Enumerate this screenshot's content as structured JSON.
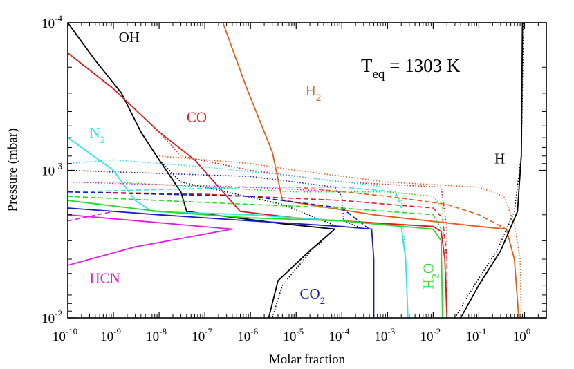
{
  "chart_data": {
    "type": "line",
    "xlabel": "Molar fraction",
    "ylabel": "Pressure (mbar)",
    "x_scale": "log",
    "y_scale": "log",
    "y_inverted": true,
    "xlim": [
      1e-10,
      3
    ],
    "ylim": [
      0.01,
      0.0001
    ],
    "grid": false,
    "annotation": {
      "base": "T",
      "sub": "eq",
      "rest": " = 1303 K"
    },
    "x_ticks": [
      {
        "base": "10",
        "exp": "-10",
        "value": 1e-10
      },
      {
        "base": "10",
        "exp": "-9",
        "value": 1e-09
      },
      {
        "base": "10",
        "exp": "-8",
        "value": 1e-08
      },
      {
        "base": "10",
        "exp": "-7",
        "value": 1e-07
      },
      {
        "base": "10",
        "exp": "-6",
        "value": 1e-06
      },
      {
        "base": "10",
        "exp": "-5",
        "value": 1e-05
      },
      {
        "base": "10",
        "exp": "-4",
        "value": 0.0001
      },
      {
        "base": "10",
        "exp": "-3",
        "value": 0.001
      },
      {
        "base": "10",
        "exp": "-2",
        "value": 0.01
      },
      {
        "base": "10",
        "exp": "-1",
        "value": 0.1
      },
      {
        "base": "10",
        "exp": "0",
        "value": 1
      }
    ],
    "y_ticks": [
      {
        "base": "10",
        "exp": "-4",
        "value": 0.0001
      },
      {
        "base": "10",
        "exp": "-3",
        "value": 0.001
      },
      {
        "base": "10",
        "exp": "-2",
        "value": 0.01
      }
    ],
    "series": [
      {
        "name": "OH",
        "label": {
          "base": "OH",
          "sub": ""
        },
        "color": "#000000",
        "label_at": [
          1.3e-09,
          0.000135
        ],
        "lines": [
          {
            "style": "solid",
            "points": [
              [
                1e-10,
                0.0001
              ],
              [
                4e-10,
                0.00018
              ],
              [
                1.5e-09,
                0.0003
              ],
              [
                4e-09,
                0.00055
              ],
              [
                1e-08,
                0.00085
              ],
              [
                3e-08,
                0.0014
              ],
              [
                4e-08,
                0.0019
              ],
              [
                5e-06,
                0.0023
              ],
              [
                7e-05,
                0.0025
              ],
              [
                2e-05,
                0.0035
              ],
              [
                4e-06,
                0.0056
              ],
              [
                2.5e-06,
                0.01
              ]
            ]
          },
          {
            "style": "dotted",
            "points": [
              [
                1e-10,
                0.0001
              ],
              [
                4e-10,
                0.00018
              ],
              [
                1.5e-09,
                0.0003
              ],
              [
                4e-09,
                0.00055
              ],
              [
                1e-08,
                0.00085
              ],
              [
                3e-08,
                0.0012
              ],
              [
                3e-07,
                0.0014
              ],
              [
                5e-06,
                0.0017
              ],
              [
                8e-05,
                0.0024
              ],
              [
                2e-05,
                0.0036
              ],
              [
                5e-06,
                0.006
              ],
              [
                3e-06,
                0.01
              ]
            ]
          }
        ]
      },
      {
        "name": "CO",
        "label": {
          "base": "CO",
          "sub": ""
        },
        "color": "#e41a1c",
        "label_at": [
          4e-08,
          0.00047
        ],
        "lines": [
          {
            "style": "solid",
            "points": [
              [
                1e-10,
                0.00016
              ],
              [
                1e-09,
                0.00028
              ],
              [
                1e-08,
                0.00055
              ],
              [
                6e-08,
                0.00085
              ],
              [
                6e-07,
                0.0019
              ],
              [
                1e-05,
                0.0021
              ],
              [
                0.001,
                0.0023
              ],
              [
                0.01,
                0.0024
              ],
              [
                0.015,
                0.0026
              ],
              [
                0.018,
                0.004
              ],
              [
                0.02,
                0.01
              ]
            ]
          },
          {
            "style": "dotted",
            "points": [
              [
                1e-10,
                0.00016
              ],
              [
                1e-09,
                0.00028
              ],
              [
                1e-08,
                0.00055
              ],
              [
                3e-08,
                0.0008
              ],
              [
                1e-06,
                0.001
              ],
              [
                0.0001,
                0.0012
              ],
              [
                0.015,
                0.0013
              ],
              [
                0.02,
                0.0025
              ],
              [
                0.02,
                0.01
              ]
            ]
          },
          {
            "style": "dashed",
            "points": [
              [
                1e-10,
                0.0014
              ],
              [
                1e-07,
                0.00145
              ],
              [
                1e-06,
                0.0015
              ],
              [
                0.0001,
                0.0016
              ],
              [
                0.01,
                0.0018
              ],
              [
                0.016,
                0.0021
              ],
              [
                0.02,
                0.004
              ],
              [
                0.02,
                0.01
              ]
            ]
          }
        ]
      },
      {
        "name": "H2",
        "label": {
          "base": "H",
          "sub": "2"
        },
        "color": "#f05a14",
        "label_at": [
          1.6e-05,
          0.00031
        ],
        "lines": [
          {
            "style": "solid",
            "points": [
              [
                2.5e-07,
                0.0001
              ],
              [
                8e-07,
                0.00027
              ],
              [
                3e-06,
                0.00075
              ],
              [
                5e-06,
                0.0016
              ],
              [
                0.0005,
                0.002
              ],
              [
                0.1,
                0.0024
              ],
              [
                0.4,
                0.0025
              ],
              [
                0.6,
                0.004
              ],
              [
                0.75,
                0.01
              ]
            ]
          },
          {
            "style": "dotted",
            "points": [
              [
                1e-08,
                0.0008
              ],
              [
                1e-06,
                0.0009
              ],
              [
                1e-05,
                0.001
              ],
              [
                0.001,
                0.0012
              ],
              [
                0.1,
                0.0013
              ],
              [
                0.35,
                0.0015
              ],
              [
                0.6,
                0.0023
              ],
              [
                0.8,
                0.004
              ],
              [
                0.85,
                0.01
              ]
            ]
          },
          {
            "style": "dashed",
            "points": [
              [
                1e-05,
                0.0013
              ],
              [
                0.001,
                0.0015
              ],
              [
                0.02,
                0.0017
              ],
              [
                0.1,
                0.002
              ],
              [
                0.4,
                0.0025
              ]
            ]
          }
        ]
      },
      {
        "name": "N2",
        "label": {
          "base": "N",
          "sub": "2"
        },
        "color": "#2ee6e6",
        "label_at": [
          3e-10,
          0.0006
        ],
        "lines": [
          {
            "style": "solid",
            "points": [
              [
                1e-10,
                0.0006
              ],
              [
                1e-09,
                0.001
              ],
              [
                3e-09,
                0.0016
              ],
              [
                7e-09,
                0.0019
              ],
              [
                1e-06,
                0.002
              ],
              [
                0.0001,
                0.0022
              ],
              [
                0.002,
                0.0024
              ],
              [
                0.0025,
                0.004
              ],
              [
                0.0028,
                0.01
              ]
            ]
          },
          {
            "style": "dotted",
            "points": [
              [
                1e-10,
                0.0009
              ],
              [
                1e-09,
                0.00085
              ],
              [
                1e-07,
                0.00095
              ],
              [
                1e-05,
                0.0011
              ],
              [
                0.001,
                0.0013
              ],
              [
                0.002,
                0.0016
              ],
              [
                0.0025,
                0.004
              ]
            ]
          },
          {
            "style": "dashed",
            "points": [
              [
                1e-10,
                0.0014
              ],
              [
                1e-08,
                0.00135
              ],
              [
                1e-06,
                0.0013
              ],
              [
                0.0001,
                0.0013
              ],
              [
                0.0015,
                0.0014
              ],
              [
                0.002,
                0.0018
              ]
            ]
          }
        ]
      },
      {
        "name": "CO2",
        "label": {
          "base": "CO",
          "sub": "2"
        },
        "color": "#1a1acc",
        "label_at": [
          1.2e-05,
          0.0074
        ],
        "lines": [
          {
            "style": "solid",
            "points": [
              [
                1e-10,
                0.0018
              ],
              [
                1e-08,
                0.002
              ],
              [
                1e-06,
                0.0022
              ],
              [
                0.0001,
                0.0024
              ],
              [
                0.00045,
                0.0025
              ],
              [
                0.0005,
                0.004
              ],
              [
                0.0005,
                0.01
              ]
            ]
          },
          {
            "style": "dotted",
            "points": [
              [
                1e-10,
                0.001
              ],
              [
                1e-08,
                0.00105
              ],
              [
                1e-06,
                0.0011
              ],
              [
                7e-05,
                0.0013
              ],
              [
                0.0001,
                0.0015
              ],
              [
                0.00011,
                0.0022
              ],
              [
                0.0003,
                0.0025
              ]
            ]
          },
          {
            "style": "dashed",
            "points": [
              [
                1e-10,
                0.0014
              ],
              [
                1e-08,
                0.00145
              ],
              [
                1e-06,
                0.0015
              ],
              [
                0.0001,
                0.0018
              ],
              [
                0.0004,
                0.0025
              ]
            ]
          }
        ]
      },
      {
        "name": "H2O",
        "label": {
          "base": "H",
          "sub": "2",
          "rest": "O"
        },
        "color": "#22dd22",
        "label_at": [
          0.01,
          0.0064
        ],
        "lines": [
          {
            "style": "solid",
            "points": [
              [
                1e-10,
                0.0016
              ],
              [
                1e-08,
                0.0019
              ],
              [
                1e-06,
                0.0021
              ],
              [
                0.0001,
                0.0022
              ],
              [
                0.01,
                0.0025
              ],
              [
                0.015,
                0.003
              ],
              [
                0.016,
                0.01
              ]
            ]
          },
          {
            "style": "dotted",
            "points": [
              [
                1e-09,
                0.0012
              ],
              [
                1e-07,
                0.0013
              ],
              [
                1e-05,
                0.0014
              ],
              [
                0.001,
                0.0014
              ],
              [
                0.01,
                0.0015
              ],
              [
                0.016,
                0.0018
              ],
              [
                0.017,
                0.003
              ]
            ]
          },
          {
            "style": "dashed",
            "points": [
              [
                1e-10,
                0.0015
              ],
              [
                1e-08,
                0.0016
              ],
              [
                1e-06,
                0.0017
              ],
              [
                0.0001,
                0.0018
              ],
              [
                0.01,
                0.002
              ],
              [
                0.015,
                0.0025
              ]
            ]
          }
        ]
      },
      {
        "name": "HCN",
        "label": {
          "base": "HCN",
          "sub": ""
        },
        "color": "#e61ae6",
        "label_at": [
          3e-10,
          0.0058
        ],
        "lines": [
          {
            "style": "solid",
            "points": [
              [
                1e-10,
                0.002
              ],
              [
                4e-07,
                0.0025
              ],
              [
                3e-09,
                0.0033
              ],
              [
                1e-10,
                0.0044
              ]
            ]
          },
          {
            "style": "dotted",
            "points": [
              [
                1e-10,
                0.0012
              ],
              [
                1e-08,
                0.00125
              ],
              [
                1e-06,
                0.0013
              ],
              [
                0.0001,
                0.0014
              ]
            ]
          },
          {
            "style": "dashed",
            "points": [
              [
                1e-10,
                0.0022
              ],
              [
                1e-09,
                0.0019
              ]
            ]
          }
        ]
      },
      {
        "name": "H",
        "label": {
          "base": "H",
          "sub": ""
        },
        "color": "#000000",
        "label_at": [
          0.22,
          0.0009
        ],
        "lines": [
          {
            "style": "solid",
            "points": [
              [
                0.04,
                0.01
              ],
              [
                0.1,
                0.006
              ],
              [
                0.3,
                0.0035
              ],
              [
                0.7,
                0.0019
              ],
              [
                0.85,
                0.0008
              ],
              [
                0.9,
                0.0001
              ]
            ]
          },
          {
            "style": "dotted",
            "points": [
              [
                0.03,
                0.01
              ],
              [
                0.08,
                0.006
              ],
              [
                0.25,
                0.0035
              ],
              [
                0.6,
                0.0019
              ],
              [
                0.85,
                0.0008
              ],
              [
                0.95,
                0.0001
              ]
            ]
          }
        ]
      }
    ]
  }
}
